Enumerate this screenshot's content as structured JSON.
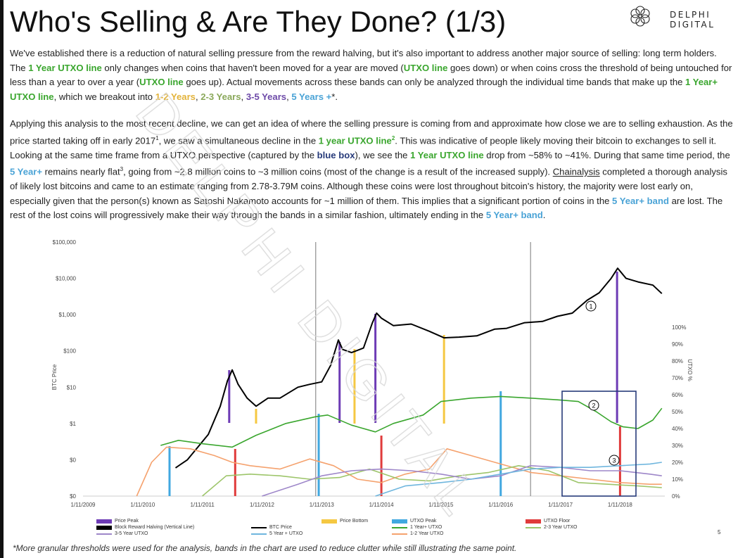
{
  "title": "Who's Selling & Are They Done? (1/3)",
  "brand": "DELPHI DIGITAL",
  "watermark": "DELPHI DIGITAL",
  "para1": {
    "s1": "We've established there is a reduction of natural selling pressure from the reward halving, but it's also important to address another major source of selling: long term holders. The ",
    "s2": "1 Year UTXO line",
    "s3": " only changes when coins that haven't been moved for a year are moved (",
    "s4": "UTXO line",
    "s5": " goes down) or when coins cross the threshold of being untouched for less than a year to over a year (",
    "s6": "UTXO line",
    "s7": " goes up). Actual movements across these bands can only be analyzed through the individual time bands that make up the ",
    "s8": "1 Year+ UTXO line",
    "s9": ", which we breakout into ",
    "s10": "1-2 Years",
    "s11": ", ",
    "s12": "2-3 Years",
    "s13": ", ",
    "s14": "3-5 Years",
    "s15": ", ",
    "s16": "5 Years +",
    "s17": "*."
  },
  "para2": {
    "s1": "Applying this analysis to the most recent decline, we can get an idea of where the selling pressure is coming from and approximate how close we are to selling exhaustion. As the price started taking off in early 2017",
    "sup1": "1",
    "s2": ", we saw a simultaneous decline in the ",
    "s3": "1 year UTXO line",
    "sup2": "2",
    "s4": ". This was indicative of people likely moving their bitcoin to exchanges to sell it.  Looking at the same time frame from a UTXO perspective (captured by the ",
    "s5": "blue box",
    "s6": "), we see the ",
    "s7": "1 Year UTXO line",
    "s8": " drop from ~58% to ~41%.  During that same time period, the ",
    "s9": "5 Year+",
    "s10": " remains nearly flat",
    "sup3": "3",
    "s11": ", going from ~2.8 million coins to ~3 million coins (most of the change is a result of the increased supply). ",
    "s12": "Chainalysis",
    "s13": " completed a thorough analysis of likely lost bitcoins and came to an estimate ranging from 2.78-3.79M coins. Although these coins were lost throughout bitcoin's history, the majority were lost early on, especially given that the person(s) known as Satoshi Nakamoto accounts for ~1 million of them. This implies that a significant portion of coins in the ",
    "s14": "5 Year+ band",
    "s15": " are lost. The rest of the lost coins will progressively make their way through the bands in a similar fashion, ultimately ending in the ",
    "s16": "5 Year+ band",
    "s17": "."
  },
  "chart_data": {
    "type": "line",
    "ylabel_left": "BTC Price",
    "ylabel_right": "UTXO %",
    "y_left_ticks": [
      "$100,000",
      "$10,000",
      "$1,000",
      "$100",
      "$10",
      "$1",
      "$0",
      "$0"
    ],
    "y_right_ticks": [
      "100%",
      "90%",
      "80%",
      "70%",
      "60%",
      "50%",
      "40%",
      "30%",
      "20%",
      "10%",
      "0%"
    ],
    "x_ticks": [
      "1/11/2009",
      "1/11/2010",
      "1/11/2011",
      "1/11/2012",
      "1/11/2013",
      "1/11/2014",
      "1/11/2015",
      "1/11/2016",
      "1/11/2017",
      "1/11/2018"
    ],
    "y_left_scale": "log",
    "x_range": [
      2009.0,
      2018.75
    ],
    "halvings": [
      2012.9,
      2016.5
    ],
    "price_peaks": [
      2011.45,
      2013.3,
      2013.9,
      2017.95
    ],
    "price_bottoms": [
      2011.9,
      2013.55,
      2015.05
    ],
    "utxo_peaks": [
      2010.45,
      2012.95,
      2016.0
    ],
    "utxo_floors": [
      2011.55,
      2014.0,
      2018.0
    ],
    "series": [
      {
        "name": "BTC Price",
        "color": "#000000",
        "axis": "left",
        "x": [
          2010.55,
          2010.75,
          2010.9,
          2011.1,
          2011.3,
          2011.42,
          2011.5,
          2011.6,
          2011.75,
          2011.9,
          2012.1,
          2012.3,
          2012.6,
          2012.8,
          2013.0,
          2013.15,
          2013.28,
          2013.35,
          2013.5,
          2013.7,
          2013.85,
          2013.92,
          2014.0,
          2014.2,
          2014.5,
          2014.8,
          2015.05,
          2015.3,
          2015.6,
          2015.9,
          2016.1,
          2016.4,
          2016.7,
          2016.95,
          2017.2,
          2017.45,
          2017.65,
          2017.85,
          2017.96,
          2018.1,
          2018.3,
          2018.55,
          2018.7
        ],
        "y": [
          0.06,
          0.1,
          0.2,
          0.5,
          3,
          15,
          30,
          12,
          5,
          3,
          5,
          5,
          10,
          12,
          14,
          40,
          200,
          110,
          90,
          120,
          600,
          1100,
          800,
          500,
          550,
          350,
          230,
          240,
          260,
          400,
          420,
          600,
          650,
          900,
          1100,
          2500,
          4000,
          10000,
          19000,
          10000,
          8000,
          6500,
          3800
        ]
      },
      {
        "name": "1 Year+ UTXO",
        "color": "#3aa62e",
        "axis": "right",
        "x": [
          2010.3,
          2010.6,
          2011.0,
          2011.5,
          2011.9,
          2012.4,
          2012.9,
          2013.1,
          2013.5,
          2013.9,
          2014.2,
          2014.7,
          2015.0,
          2015.5,
          2016.0,
          2016.5,
          2016.95,
          2017.3,
          2017.6,
          2017.85,
          2018.05,
          2018.3,
          2018.55,
          2018.7
        ],
        "y": [
          30,
          33,
          31,
          29,
          36,
          43,
          47,
          48,
          42,
          38,
          43,
          48,
          56,
          58,
          59,
          58,
          57,
          56,
          50,
          44,
          41,
          40,
          45,
          52
        ]
      },
      {
        "name": "1-2 Year UTXO",
        "color": "#f5a26e",
        "axis": "right",
        "x": [
          2009.9,
          2010.15,
          2010.4,
          2010.8,
          2011.2,
          2011.5,
          2011.8,
          2012.3,
          2012.8,
          2013.2,
          2013.6,
          2014.0,
          2014.4,
          2014.8,
          2015.1,
          2015.5,
          2016.0,
          2016.5,
          2017.0,
          2017.5,
          2018.0,
          2018.5,
          2018.7
        ],
        "y": [
          0,
          20,
          29,
          28,
          24,
          20,
          18,
          16,
          22,
          18,
          10,
          8,
          13,
          16,
          28,
          24,
          19,
          14,
          12,
          10,
          8,
          7,
          7
        ]
      },
      {
        "name": "2-3 Year UTXO",
        "color": "#9dc56a",
        "axis": "right",
        "x": [
          2011.0,
          2011.4,
          2011.8,
          2012.3,
          2012.8,
          2013.3,
          2013.8,
          2014.3,
          2014.8,
          2015.3,
          2015.8,
          2016.3,
          2016.8,
          2017.3,
          2017.8,
          2018.3,
          2018.7
        ],
        "y": [
          0,
          12,
          13,
          12,
          10,
          11,
          16,
          10,
          9,
          12,
          14,
          18,
          15,
          8,
          7,
          6,
          5
        ]
      },
      {
        "name": "3-5 Year UTXO",
        "color": "#9e87c9",
        "axis": "right",
        "x": [
          2012.0,
          2012.6,
          2013.0,
          2013.5,
          2014.0,
          2014.5,
          2015.0,
          2015.5,
          2016.0,
          2016.5,
          2017.0,
          2017.5,
          2018.0,
          2018.5,
          2018.7
        ],
        "y": [
          0,
          7,
          12,
          15,
          16,
          15,
          13,
          10,
          12,
          18,
          17,
          15,
          15,
          13,
          12
        ]
      },
      {
        "name": "5 Year + UTXO",
        "color": "#6fb6de",
        "axis": "right",
        "x": [
          2013.9,
          2014.4,
          2015.0,
          2015.5,
          2016.0,
          2016.5,
          2017.0,
          2017.5,
          2018.0,
          2018.5,
          2018.7
        ],
        "y": [
          0,
          6,
          8,
          10,
          13,
          16,
          17,
          17,
          18,
          19,
          20
        ]
      }
    ],
    "annotations": [
      "1",
      "2",
      "3"
    ],
    "legend": [
      {
        "label": "Price Peak",
        "color": "#6d3bb5",
        "kind": "bar"
      },
      {
        "label": "Price Bottom",
        "color": "#f5c842",
        "kind": "bar"
      },
      {
        "label": "UTXO Peak",
        "color": "#41a8e0",
        "kind": "bar"
      },
      {
        "label": "UTXO Floor",
        "color": "#e03b3b",
        "kind": "bar"
      },
      {
        "label": "Block Reward Halving (Vertical Line)",
        "color": "#000000",
        "kind": "bar"
      },
      {
        "label": "BTC Price",
        "color": "#000000",
        "kind": "line"
      },
      {
        "label": "1 Year+ UTXO",
        "color": "#3aa62e",
        "kind": "line"
      },
      {
        "label": "2-3 Year UTXO",
        "color": "#9dc56a",
        "kind": "line"
      },
      {
        "label": "3-5 Year UTXO",
        "color": "#9e87c9",
        "kind": "line"
      },
      {
        "label": "5 Year + UTXO",
        "color": "#6fb6de",
        "kind": "line"
      },
      {
        "label": "1-2 Year UTXO",
        "color": "#f5a26e",
        "kind": "line"
      }
    ]
  },
  "footnote": "*More granular thresholds were used for the analysis, bands in the chart are used to reduce clutter while still illustrating the same point.",
  "page_number": "5"
}
